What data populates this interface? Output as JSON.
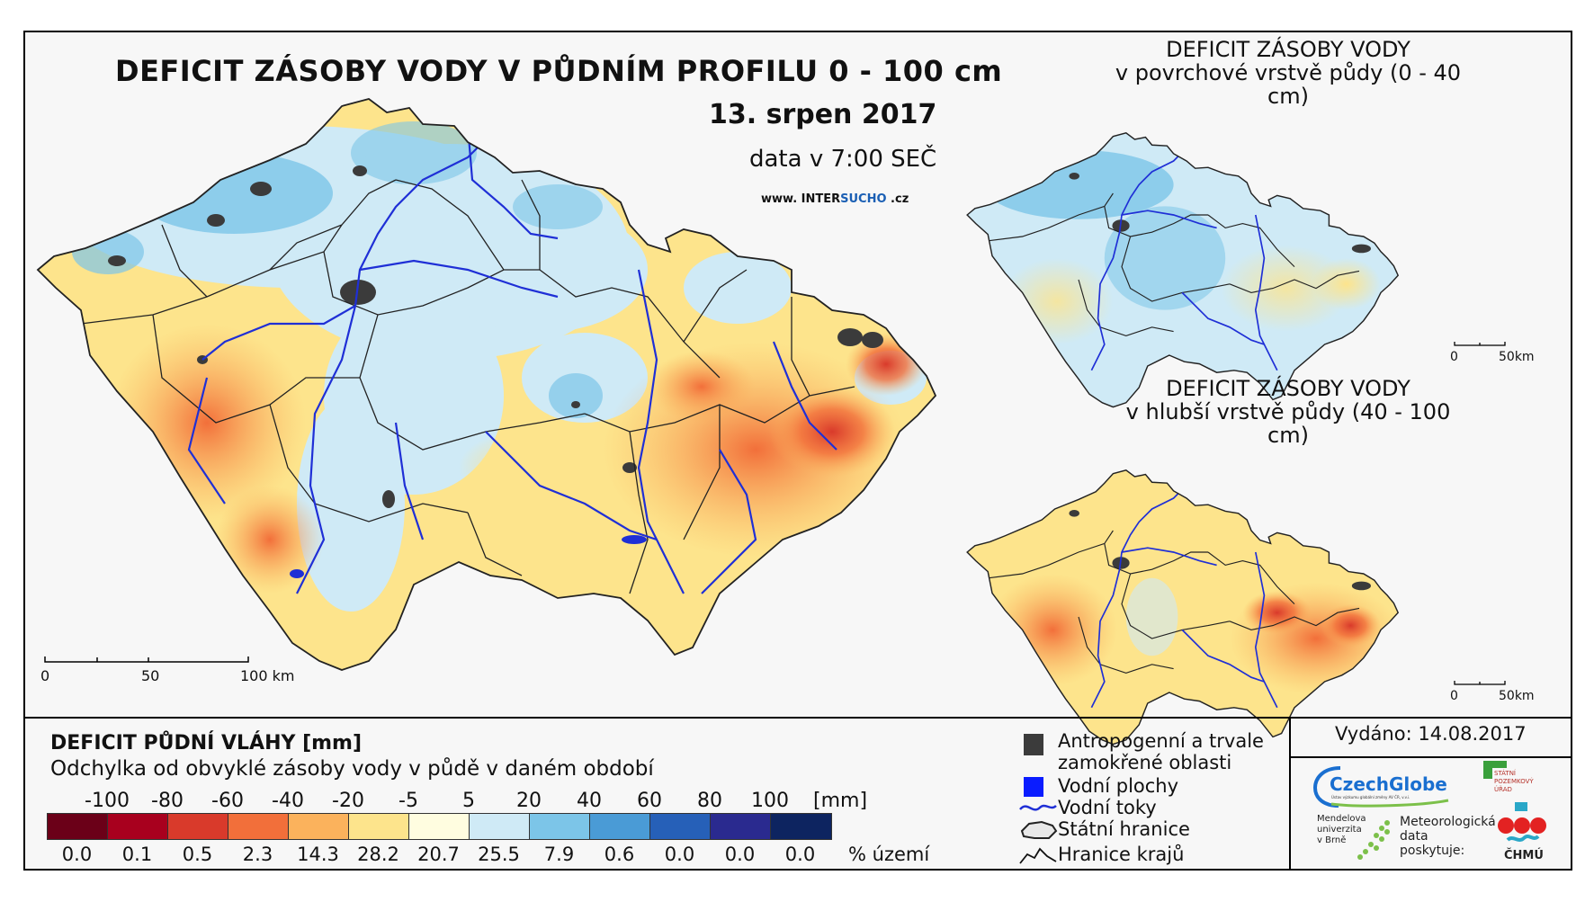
{
  "main_title": "DEFICIT ZÁSOBY VODY V PŮDNÍM PROFILU 0 - 100 cm",
  "main_date": "13. srpen 2017",
  "main_time": "data v 7:00 SEČ",
  "website": {
    "prefix": "www. INTER",
    "accent": "SUCHO",
    "suffix": " .cz"
  },
  "inset_top": {
    "title": "DEFICIT ZÁSOBY VODY",
    "subtitle": "v povrchové vrstvě půdy (0 - 40 cm)"
  },
  "inset_bottom": {
    "title": "DEFICIT ZÁSOBY VODY",
    "subtitle": "v hlubší vrstvě půdy (40 - 100 cm)"
  },
  "scalebar_main": {
    "labels": [
      "0",
      "50",
      "100 km"
    ]
  },
  "scalebar_inset": {
    "labels": [
      "0",
      "50km"
    ]
  },
  "legend": {
    "title": "DEFICIT PŮDNÍ VLÁHY [mm]",
    "subtitle": "Odchylka od obvyklé zásoby vody v půdě v daném období",
    "ticks": [
      "-100",
      "-80",
      "-60",
      "-40",
      "-20",
      "-5",
      "5",
      "20",
      "40",
      "60",
      "80",
      "100"
    ],
    "unit_mm": "[mm]",
    "colors": [
      "#6b0018",
      "#a8001e",
      "#d93a2b",
      "#f26f3a",
      "#fbb25c",
      "#fde48c",
      "#fffde0",
      "#cfeaf6",
      "#7cc5e8",
      "#4a9bd6",
      "#2660b8",
      "#2a2a8f",
      "#0d2460"
    ],
    "percent": [
      "0.0",
      "0.1",
      "0.5",
      "2.3",
      "14.3",
      "28.2",
      "20.7",
      "25.5",
      "7.9",
      "0.6",
      "0.0",
      "0.0",
      "0.0"
    ],
    "unit_pct": "% území"
  },
  "legend_symbols": {
    "anthropogenic": "Antropogenní a trvale zamokřené oblasti",
    "water_areas": "Vodní plochy",
    "rivers": "Vodní toky",
    "state_border": "Státní hranice",
    "region_border": "Hranice krajů"
  },
  "issued": "Vydáno: 14.08.2017",
  "logos": {
    "czechglobe": "CzechGlobe",
    "czechglobe_sub": "Ústav výzkumu globální změny AV ČR, v.v.i.",
    "spu": [
      "STÁTNÍ",
      "POZEMKOVÝ",
      "ÚŘAD"
    ],
    "mendelu": [
      "Mendelova",
      "univerzita",
      "v Brně"
    ],
    "meteo": [
      "Meteorologická",
      "data",
      "poskytuje:"
    ],
    "chmu": "ČHMÚ"
  }
}
